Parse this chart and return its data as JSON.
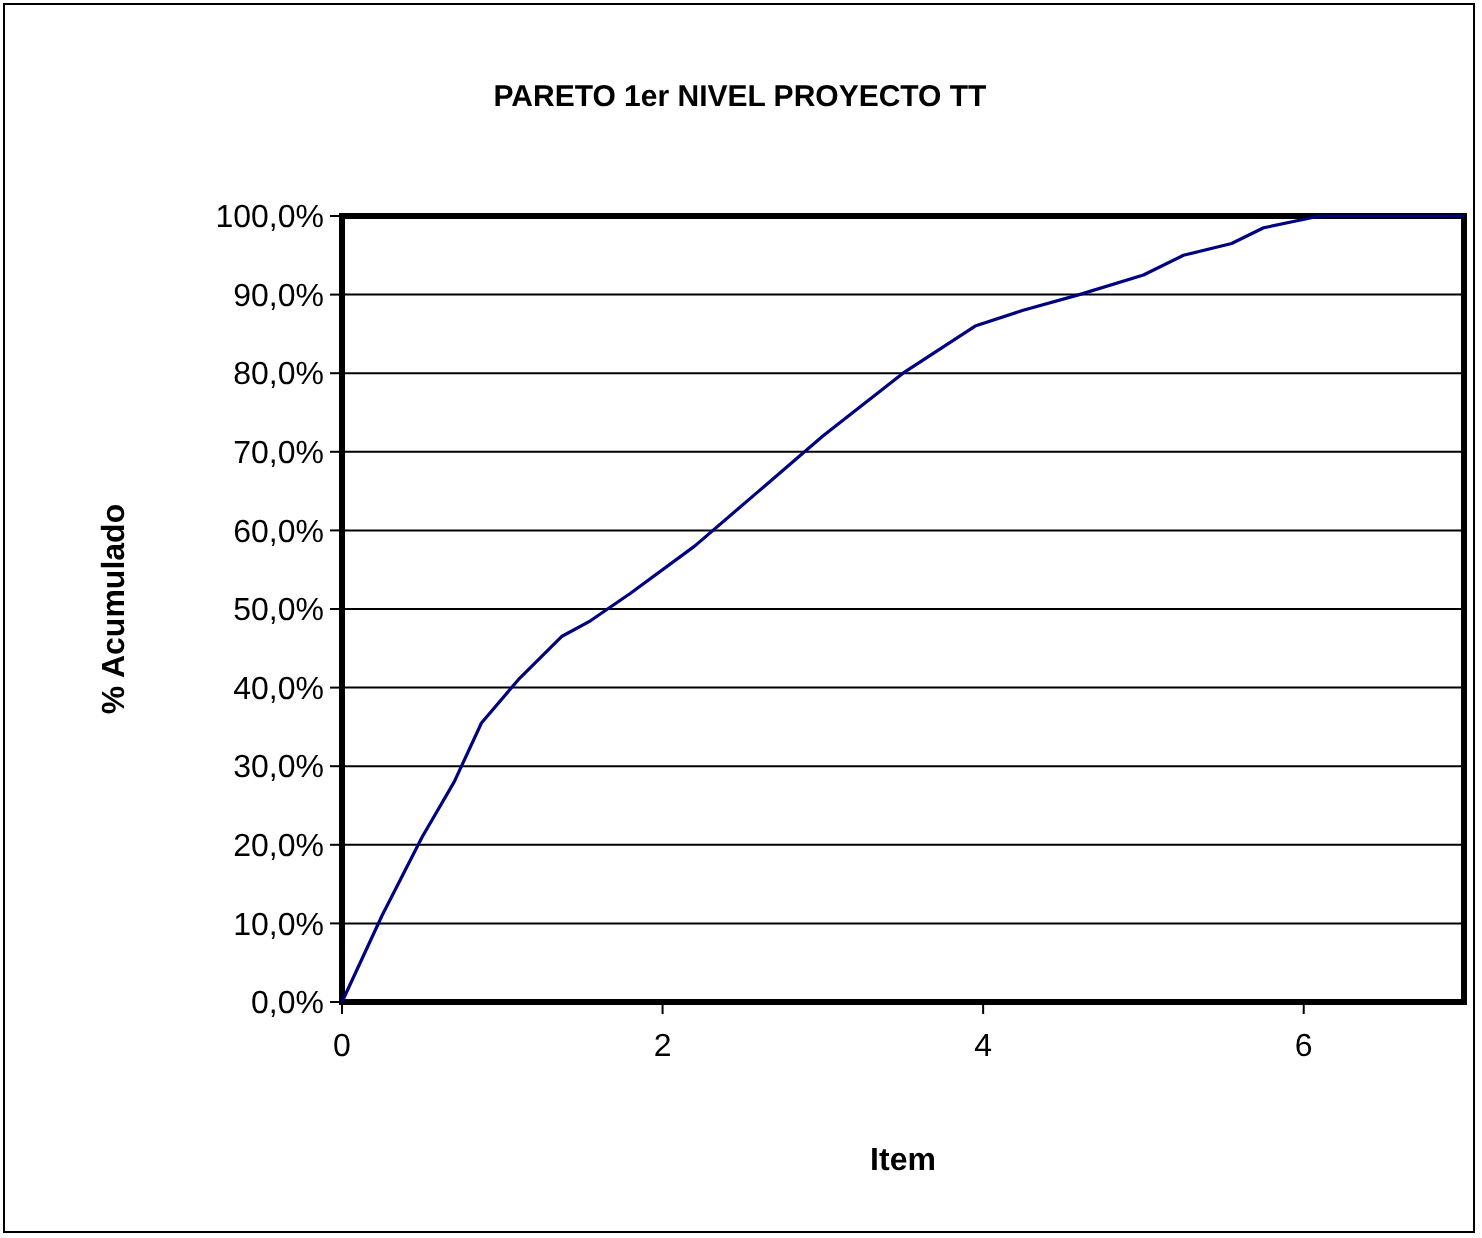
{
  "chart_data": {
    "type": "line",
    "title": "PARETO 1er NIVEL PROYECTO TT",
    "xlabel": "Item",
    "ylabel": "% Acumulado",
    "x": [
      0,
      0.25,
      0.5,
      0.7,
      0.87,
      1.1,
      1.37,
      1.55,
      1.8,
      2.2,
      2.6,
      3,
      3.5,
      3.95,
      4.25,
      4.6,
      5,
      5.25,
      5.55,
      5.75,
      6.1,
      7
    ],
    "series": [
      {
        "color": "#000080",
        "values": [
          0,
          11,
          21,
          28,
          35.5,
          41,
          46.5,
          48.5,
          52,
          58,
          65,
          72,
          80,
          86,
          88,
          90,
          92.5,
          95,
          96.5,
          98.5,
          100,
          100
        ]
      }
    ],
    "xlim": [
      0,
      7
    ],
    "xticks": [
      0,
      2,
      4,
      6
    ],
    "ylim": [
      0,
      100
    ],
    "yticks": [
      {
        "value": 0,
        "label": "0,0%"
      },
      {
        "value": 10,
        "label": "10,0%"
      },
      {
        "value": 20,
        "label": "20,0%"
      },
      {
        "value": 30,
        "label": "30,0%"
      },
      {
        "value": 40,
        "label": "40,0%"
      },
      {
        "value": 50,
        "label": "50,0%"
      },
      {
        "value": 60,
        "label": "60,0%"
      },
      {
        "value": 70,
        "label": "70,0%"
      },
      {
        "value": 80,
        "label": "80,0%"
      },
      {
        "value": 90,
        "label": "90,0%"
      },
      {
        "value": 100,
        "label": "100,0%"
      }
    ],
    "grid": "y",
    "marker": "none",
    "line_style": "solid"
  }
}
